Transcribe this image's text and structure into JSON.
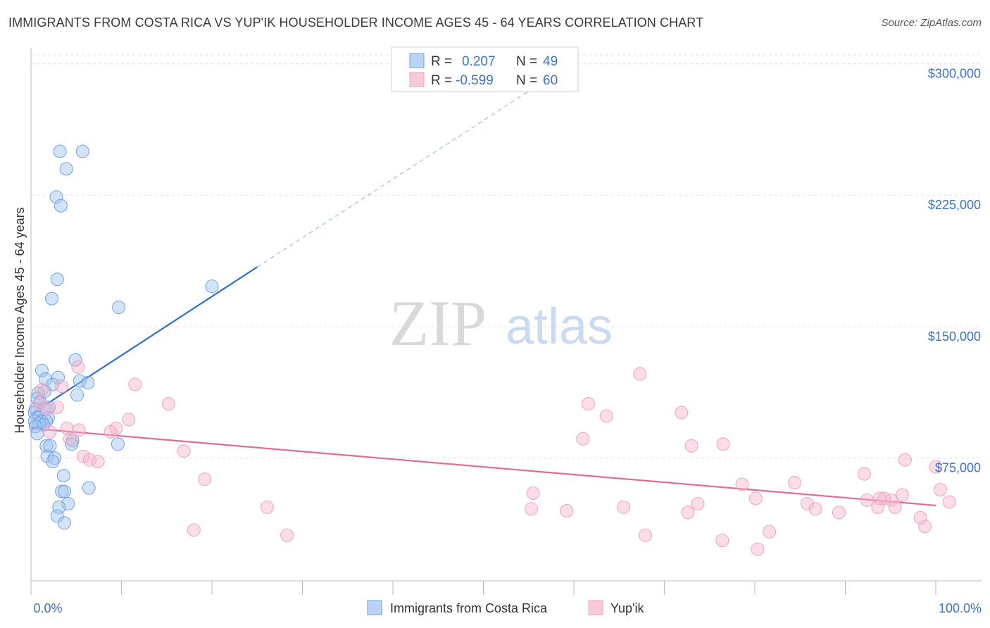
{
  "title": "IMMIGRANTS FROM COSTA RICA VS YUP'IK HOUSEHOLDER INCOME AGES 45 - 64 YEARS CORRELATION CHART",
  "source": "Source: ZipAtlas.com",
  "watermark": {
    "zip": "ZIP",
    "atlas": "atlas"
  },
  "legend": {
    "r_label": "R =",
    "n_label": "N =",
    "rows": [
      {
        "r": "0.207",
        "n": "49"
      },
      {
        "r": "-0.599",
        "n": "60"
      }
    ]
  },
  "chart_data": {
    "type": "scatter",
    "title": "IMMIGRANTS FROM COSTA RICA VS YUP'IK HOUSEHOLDER INCOME AGES 45 - 64 YEARS CORRELATION CHART",
    "xlabel": "",
    "ylabel": "Householder Income Ages 45 - 64 years",
    "xlim": [
      0,
      100
    ],
    "ylim": [
      5000,
      305000
    ],
    "x_tick_labels": [
      "0.0%",
      "100.0%"
    ],
    "y_ticks": [
      {
        "value": 300000,
        "label": "$300,000"
      },
      {
        "value": 225000,
        "label": "$225,000"
      },
      {
        "value": 150000,
        "label": "$150,000"
      },
      {
        "value": 75000,
        "label": "$75,000"
      }
    ],
    "series": [
      {
        "name": "Immigrants from Costa Rica",
        "color": "#6fa0e6",
        "line_color": "#2f6fcc",
        "trend": {
          "x0": 0,
          "y0": 100000,
          "x1": 25,
          "y1": 184000,
          "dash_x1": 57,
          "dash_y1": 291000
        },
        "points": [
          [
            3.2,
            250000
          ],
          [
            5.7,
            250000
          ],
          [
            3.9,
            240000
          ],
          [
            2.8,
            224000
          ],
          [
            3.3,
            219000
          ],
          [
            2.9,
            177000
          ],
          [
            2.3,
            166000
          ],
          [
            20.0,
            173000
          ],
          [
            9.7,
            161000
          ],
          [
            4.9,
            131000
          ],
          [
            1.2,
            125000
          ],
          [
            3.0,
            121000
          ],
          [
            1.6,
            120000
          ],
          [
            5.4,
            119000
          ],
          [
            6.3,
            118000
          ],
          [
            2.4,
            117000
          ],
          [
            1.5,
            113000
          ],
          [
            0.8,
            112000
          ],
          [
            5.1,
            111000
          ],
          [
            0.7,
            109000
          ],
          [
            1.0,
            107000
          ],
          [
            2.0,
            104000
          ],
          [
            0.5,
            103000
          ],
          [
            1.5,
            103000
          ],
          [
            0.4,
            101000
          ],
          [
            0.9,
            98000
          ],
          [
            1.9,
            98000
          ],
          [
            0.4,
            96000
          ],
          [
            1.2,
            96000
          ],
          [
            1.7,
            96000
          ],
          [
            0.9,
            95000
          ],
          [
            1.4,
            94000
          ],
          [
            0.5,
            93000
          ],
          [
            0.7,
            89000
          ],
          [
            4.6,
            85000
          ],
          [
            4.5,
            83000
          ],
          [
            9.6,
            83000
          ],
          [
            1.7,
            82000
          ],
          [
            2.1,
            82000
          ],
          [
            1.8,
            76000
          ],
          [
            2.6,
            75000
          ],
          [
            2.4,
            73000
          ],
          [
            3.6,
            65000
          ],
          [
            6.4,
            58000
          ],
          [
            3.4,
            56000
          ],
          [
            3.7,
            56000
          ],
          [
            4.1,
            49000
          ],
          [
            3.1,
            47000
          ],
          [
            2.9,
            42000
          ],
          [
            3.7,
            38000
          ]
        ]
      },
      {
        "name": "Yup'ik",
        "color": "#f0a3bf",
        "line_color": "#e36a96",
        "trend": {
          "x0": 0,
          "y0": 92000,
          "x1": 100,
          "y1": 48000
        },
        "points": [
          [
            5.2,
            127000
          ],
          [
            11.5,
            117000
          ],
          [
            3.4,
            116000
          ],
          [
            1.2,
            114000
          ],
          [
            0.9,
            106000
          ],
          [
            2.9,
            104000
          ],
          [
            15.2,
            106000
          ],
          [
            1.8,
            103000
          ],
          [
            10.8,
            97000
          ],
          [
            4.0,
            92000
          ],
          [
            9.4,
            92000
          ],
          [
            5.3,
            91000
          ],
          [
            2.1,
            90000
          ],
          [
            8.8,
            90000
          ],
          [
            4.3,
            86000
          ],
          [
            16.9,
            79000
          ],
          [
            5.8,
            76000
          ],
          [
            6.5,
            74000
          ],
          [
            7.4,
            73000
          ],
          [
            19.2,
            63000
          ],
          [
            18.0,
            34000
          ],
          [
            26.1,
            47000
          ],
          [
            28.3,
            31000
          ],
          [
            67.3,
            123000
          ],
          [
            61.6,
            106000
          ],
          [
            71.9,
            101000
          ],
          [
            63.6,
            99000
          ],
          [
            61.0,
            86000
          ],
          [
            76.5,
            83000
          ],
          [
            73.0,
            82000
          ],
          [
            55.5,
            55000
          ],
          [
            55.3,
            46000
          ],
          [
            59.2,
            45000
          ],
          [
            65.5,
            47000
          ],
          [
            72.6,
            44000
          ],
          [
            73.7,
            49000
          ],
          [
            78.6,
            60000
          ],
          [
            80.1,
            52000
          ],
          [
            84.4,
            61000
          ],
          [
            85.8,
            49000
          ],
          [
            86.7,
            46000
          ],
          [
            89.3,
            44000
          ],
          [
            92.1,
            66000
          ],
          [
            92.4,
            51000
          ],
          [
            93.6,
            47000
          ],
          [
            94.3,
            52000
          ],
          [
            95.1,
            51000
          ],
          [
            96.3,
            54000
          ],
          [
            96.6,
            74000
          ],
          [
            98.3,
            41000
          ],
          [
            98.8,
            36000
          ],
          [
            100.0,
            70000
          ],
          [
            100.5,
            57000
          ],
          [
            101.5,
            50000
          ],
          [
            93.8,
            52000
          ],
          [
            81.6,
            33000
          ],
          [
            76.4,
            28000
          ],
          [
            67.9,
            31000
          ],
          [
            80.3,
            23000
          ],
          [
            95.5,
            47000
          ]
        ]
      }
    ]
  },
  "bottom_legend": [
    "Immigrants from Costa Rica",
    "Yup'ik"
  ]
}
